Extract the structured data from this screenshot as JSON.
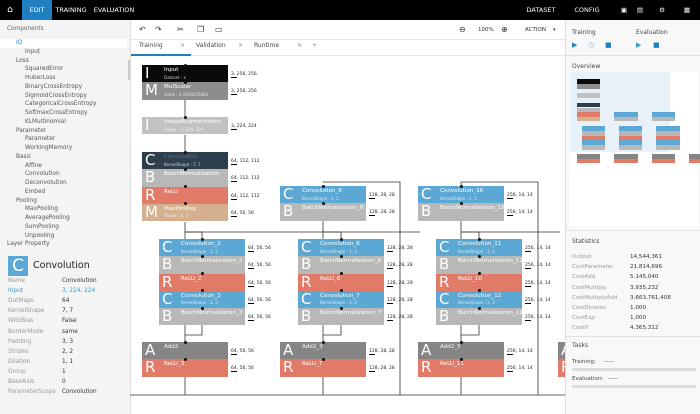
{
  "topbar": {
    "nav": [
      "EDIT",
      "TRAINING",
      "EVALUATION"
    ],
    "right": [
      "DATASET",
      "CONFIG"
    ]
  },
  "components": {
    "title": "Components",
    "items": [
      {
        "label": "IO",
        "level": 0,
        "selected": true
      },
      {
        "label": "Input",
        "level": 1
      },
      {
        "label": "Loss",
        "level": 0
      },
      {
        "label": "SquaredError",
        "level": 1
      },
      {
        "label": "HuberLoss",
        "level": 1
      },
      {
        "label": "BinaryCrossEntropy",
        "level": 1
      },
      {
        "label": "SigmoidCrossEntropy",
        "level": 1
      },
      {
        "label": "CategoricalCrossEntropy",
        "level": 1
      },
      {
        "label": "SoftmaxCrossEntropy",
        "level": 1
      },
      {
        "label": "KLMultinomial",
        "level": 1
      },
      {
        "label": "Parameter",
        "level": 0
      },
      {
        "label": "Parameter",
        "level": 1
      },
      {
        "label": "WorkingMemory",
        "level": 1
      },
      {
        "label": "Basic",
        "level": 0
      },
      {
        "label": "Affine",
        "level": 1
      },
      {
        "label": "Convolution",
        "level": 1
      },
      {
        "label": "Deconvolution",
        "level": 1
      },
      {
        "label": "Embed",
        "level": 1
      },
      {
        "label": "Pooling",
        "level": 0
      },
      {
        "label": "MaxPooling",
        "level": 1
      },
      {
        "label": "AveragePooling",
        "level": 1
      },
      {
        "label": "SumPooling",
        "level": 1
      },
      {
        "label": "Unpooling",
        "level": 1
      }
    ]
  },
  "layer_property": {
    "title": "Layer Property",
    "icon_letter": "C",
    "layer_name": "Convolution",
    "rows": [
      {
        "k": "Name",
        "v": "Convolution"
      },
      {
        "k": "Input",
        "v": "3, 224, 224",
        "link": true
      },
      {
        "k": "OutMaps",
        "v": "64"
      },
      {
        "k": "KernelShape",
        "v": "7, 7"
      },
      {
        "k": "WithBias",
        "v": "False"
      },
      {
        "k": "BorderMode",
        "v": "same"
      },
      {
        "k": "Padding",
        "v": "3, 3"
      },
      {
        "k": "Strides",
        "v": "2, 2"
      },
      {
        "k": "Dilation",
        "v": "1, 1"
      },
      {
        "k": "Group",
        "v": "1"
      },
      {
        "k": "BaseAxis",
        "v": "0"
      },
      {
        "k": "ParameterScope",
        "v": "Convolution"
      }
    ]
  },
  "editor": {
    "zoom": "100%",
    "action": "ACTION",
    "tabs": [
      "Training",
      "Validation",
      "Runtime"
    ],
    "add_tab": "+"
  },
  "colors": {
    "C": "#5ba8d4",
    "C_sel": "#2e3f4c",
    "B": "#b8b8b8",
    "R": "#e27a68",
    "M_pool": "#d5b08e",
    "A": "#858585",
    "I": "#0a0a0a",
    "M": "#8d8d8d",
    "I_aug": "#c2c2c2",
    "accent": "#1f7fc1"
  },
  "network": [
    {
      "layers": [
        {
          "l": "I",
          "n": "Input",
          "s": "Dataset : x",
          "o": "3, 256, 256",
          "c": "I"
        },
        {
          "l": "M",
          "n": "MulScalar",
          "s": "Value : 0.0039215686",
          "o": "3, 256, 256",
          "c": "M"
        }
      ]
    },
    {
      "layers": [
        {
          "l": "I",
          "n": "ImageAugmentation",
          "s": "Shape : 3, 224, 224",
          "o": "3, 224, 224",
          "c": "I_aug"
        }
      ]
    },
    {
      "layers": [
        {
          "l": "C",
          "n": "Convolution",
          "s": "KernelShape : 7, 7",
          "o": "64, 112, 112",
          "c": "C_sel"
        },
        {
          "l": "B",
          "n": "BatchNormalization",
          "s": "",
          "o": "64, 112, 112",
          "c": "B"
        },
        {
          "l": "R",
          "n": "ReLU",
          "s": "",
          "o": "64, 112, 112",
          "c": "R"
        },
        {
          "l": "M",
          "n": "MaxPooling",
          "s": "Shape : 3, 3",
          "o": "64, 56, 56",
          "c": "M_pool"
        }
      ]
    },
    {
      "layers": [
        {
          "l": "C",
          "n": "Convolution_2",
          "s": "KernelShape : 3, 3",
          "o": "64, 56, 56",
          "c": "C"
        },
        {
          "l": "B",
          "n": "BatchNormalization_2",
          "s": "",
          "o": "64, 56, 56",
          "c": "B"
        },
        {
          "l": "R",
          "n": "ReLU_2",
          "s": "",
          "o": "64, 56, 56",
          "c": "R"
        },
        {
          "l": "C",
          "n": "Convolution_3",
          "s": "KernelShape : 3, 3",
          "o": "64, 56, 56",
          "c": "C"
        },
        {
          "l": "B",
          "n": "BatchNormalization_3",
          "s": "",
          "o": "64, 56, 56",
          "c": "B"
        }
      ]
    },
    {
      "layers": [
        {
          "l": "A",
          "n": "Add2",
          "s": "",
          "o": "64, 56, 56",
          "c": "A"
        },
        {
          "l": "R",
          "n": "ReLU_3",
          "s": "",
          "o": "64, 56, 56",
          "c": "R"
        }
      ]
    },
    {
      "layers": [
        {
          "l": "C",
          "n": "Convolution_9",
          "s": "KernelShape : 1, 1",
          "o": "128, 28, 28",
          "c": "C"
        },
        {
          "l": "B",
          "n": "BatchNormalization_9",
          "s": "",
          "o": "128, 28, 28",
          "c": "B"
        }
      ]
    },
    {
      "layers": [
        {
          "l": "C",
          "n": "Convolution_6",
          "s": "KernelShape : 3, 3",
          "o": "128, 28, 28",
          "c": "C"
        },
        {
          "l": "B",
          "n": "BatchNormalization_6",
          "s": "",
          "o": "128, 28, 28",
          "c": "B"
        },
        {
          "l": "R",
          "n": "ReLU_6",
          "s": "",
          "o": "128, 28, 28",
          "c": "R"
        },
        {
          "l": "C",
          "n": "Convolution_7",
          "s": "KernelShape : 3, 3",
          "o": "128, 28, 28",
          "c": "C"
        },
        {
          "l": "B",
          "n": "BatchNormalization_7",
          "s": "",
          "o": "128, 28, 28",
          "c": "B"
        }
      ]
    },
    {
      "layers": [
        {
          "l": "A",
          "n": "Add2_3",
          "s": "",
          "o": "128, 28, 28",
          "c": "A"
        },
        {
          "l": "R",
          "n": "ReLU_7",
          "s": "",
          "o": "128, 28, 28",
          "c": "R"
        }
      ]
    },
    {
      "layers": [
        {
          "l": "C",
          "n": "Convolution_16",
          "s": "KernelShape : 1, 1",
          "o": "256, 14, 14",
          "c": "C"
        },
        {
          "l": "B",
          "n": "BatchNormalization_16",
          "s": "",
          "o": "256, 14, 14",
          "c": "B"
        }
      ]
    },
    {
      "layers": [
        {
          "l": "C",
          "n": "Convolution_11",
          "s": "KernelShape : 3, 3",
          "o": "256, 14, 14",
          "c": "C"
        },
        {
          "l": "B",
          "n": "BatchNormalization_11",
          "s": "",
          "o": "256, 14, 14",
          "c": "B"
        },
        {
          "l": "R",
          "n": "ReLU_10",
          "s": "",
          "o": "256, 14, 14",
          "c": "R"
        },
        {
          "l": "C",
          "n": "Convolution_12",
          "s": "KernelShape : 3, 3",
          "o": "256, 14, 14",
          "c": "C"
        },
        {
          "l": "B",
          "n": "BatchNormalization_12",
          "s": "",
          "o": "256, 14, 14",
          "c": "B"
        }
      ]
    },
    {
      "layers": [
        {
          "l": "A",
          "n": "Add2_5",
          "s": "",
          "o": "256, 14, 14",
          "c": "A"
        },
        {
          "l": "R",
          "n": "ReLU_11",
          "s": "",
          "o": "256, 14, 14",
          "c": "R"
        }
      ]
    },
    {
      "layers": [
        {
          "l": "A",
          "n": "",
          "s": "",
          "o": "",
          "c": "A"
        },
        {
          "l": "R",
          "n": "",
          "s": "",
          "o": "",
          "c": "R"
        }
      ]
    }
  ],
  "right": {
    "training": "Training",
    "evaluation": "Evaluation",
    "overview": "Overview",
    "statistics_title": "Statistics",
    "statistics": [
      {
        "k": "Output",
        "v": "14,544,361"
      },
      {
        "k": "CostParameter",
        "v": "21,814,696"
      },
      {
        "k": "CostAdd",
        "v": "5,145,040"
      },
      {
        "k": "CostMultiply",
        "v": "3,935,232"
      },
      {
        "k": "CostMultiplyAdd",
        "v": "3,663,761,408"
      },
      {
        "k": "CostDivision",
        "v": "1,000"
      },
      {
        "k": "CostExp",
        "v": "1,000"
      },
      {
        "k": "CostIf",
        "v": "4,365,312"
      }
    ],
    "tasks_title": "Tasks",
    "tasks": [
      {
        "k": "Training:",
        "v": "-----",
        "progress": 0
      },
      {
        "k": "Evaluation:",
        "v": "-----",
        "progress": 0
      }
    ]
  }
}
